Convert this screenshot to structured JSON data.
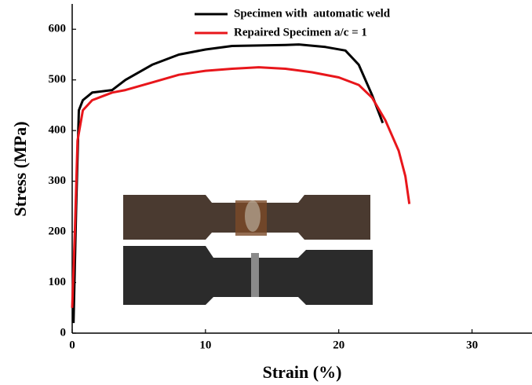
{
  "chart_data": {
    "type": "line",
    "x_label": "Strain (%)",
    "y_label": "Stress (MPa)",
    "xlim": [
      0,
      34.5
    ],
    "ylim": [
      0,
      650
    ],
    "xticks": [
      0,
      10,
      20,
      30
    ],
    "yticks": [
      0,
      100,
      200,
      300,
      400,
      500,
      600
    ],
    "legend": "top",
    "series": [
      {
        "name": "Specimen with  automatic weld",
        "color": "#000000",
        "x": [
          0.1,
          0.3,
          0.5,
          0.8,
          1.5,
          3,
          4,
          6,
          8,
          10,
          12,
          14,
          16,
          17,
          19,
          20.5,
          21.5,
          22.5,
          23.3
        ],
        "values": [
          20,
          250,
          440,
          460,
          475,
          480,
          500,
          530,
          550,
          560,
          567,
          568,
          569,
          570,
          565,
          558,
          530,
          470,
          415
        ]
      },
      {
        "name": "Repaired Specimen a/c = 1",
        "color": "#e8161b",
        "x": [
          0,
          0.2,
          0.4,
          0.8,
          1.5,
          3,
          4,
          6,
          8,
          10,
          12,
          14,
          16,
          18,
          20,
          21.5,
          22.5,
          23.5,
          24.5,
          25,
          25.3
        ],
        "values": [
          50,
          200,
          380,
          440,
          460,
          475,
          480,
          495,
          510,
          518,
          522,
          525,
          522,
          515,
          505,
          490,
          465,
          420,
          360,
          310,
          255
        ]
      }
    ]
  }
}
